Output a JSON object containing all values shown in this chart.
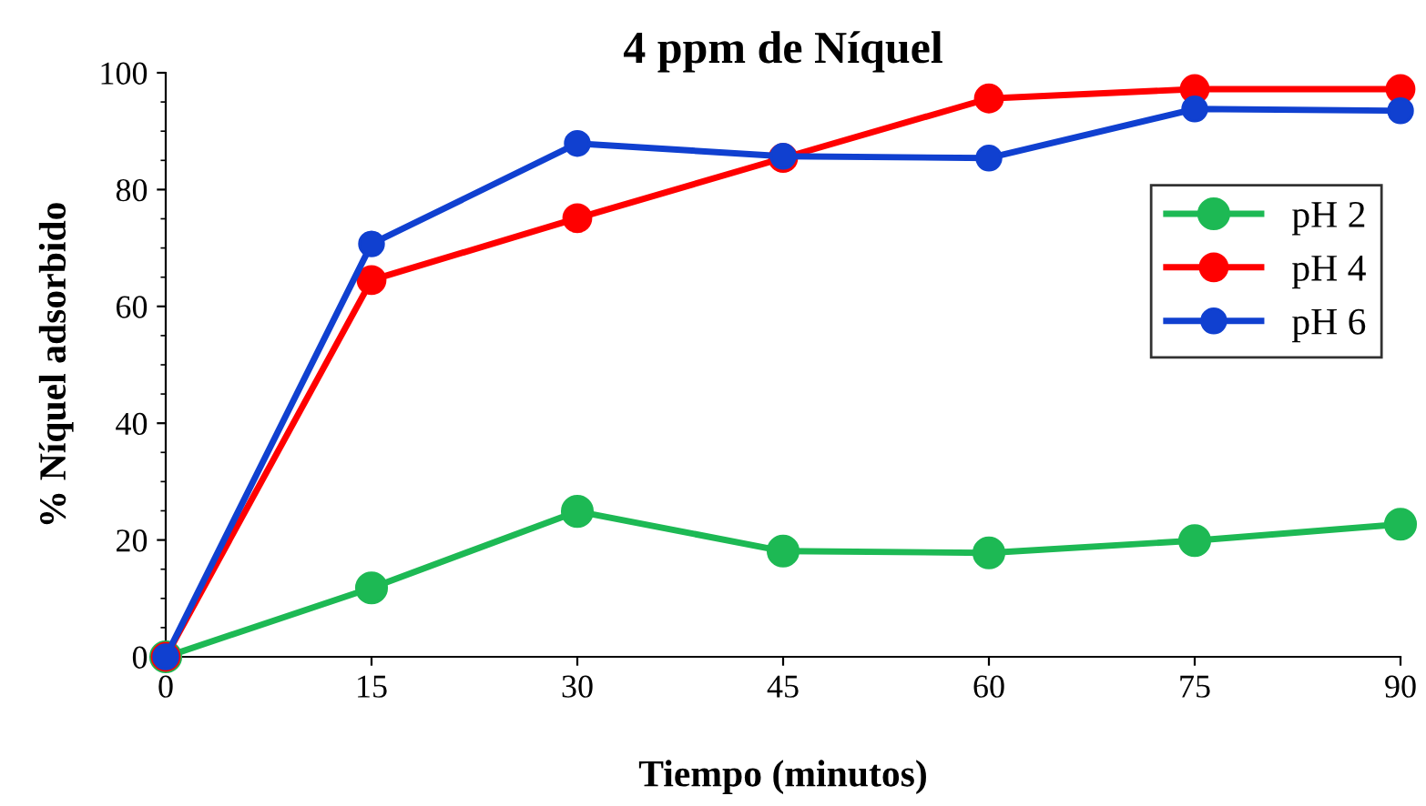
{
  "chart_data": {
    "type": "line",
    "title": "4 ppm de Níquel",
    "xlabel": "Tiempo (minutos)",
    "ylabel": "% Níquel adsorbido",
    "x": [
      0,
      15,
      30,
      45,
      60,
      75,
      90
    ],
    "series": [
      {
        "name": "pH 2",
        "color": "#1db954",
        "values": [
          0,
          11.8,
          24.9,
          18.1,
          17.8,
          19.9,
          22.7
        ]
      },
      {
        "name": "pH 4",
        "color": "#ff0000",
        "values": [
          0,
          64.5,
          75.1,
          85.4,
          95.6,
          97.2,
          97.2
        ]
      },
      {
        "name": "pH 6",
        "color": "#1040d0",
        "values": [
          0,
          70.7,
          87.9,
          85.7,
          85.4,
          93.8,
          93.5
        ]
      }
    ],
    "xlim": [
      0,
      90
    ],
    "xticks": [
      0,
      15,
      30,
      45,
      60,
      75,
      90
    ],
    "ylim": [
      0,
      100
    ],
    "yticks": [
      0,
      20,
      40,
      60,
      80,
      100
    ],
    "grid": false,
    "legend": "right",
    "marker": "circle",
    "line_style": "solid"
  }
}
